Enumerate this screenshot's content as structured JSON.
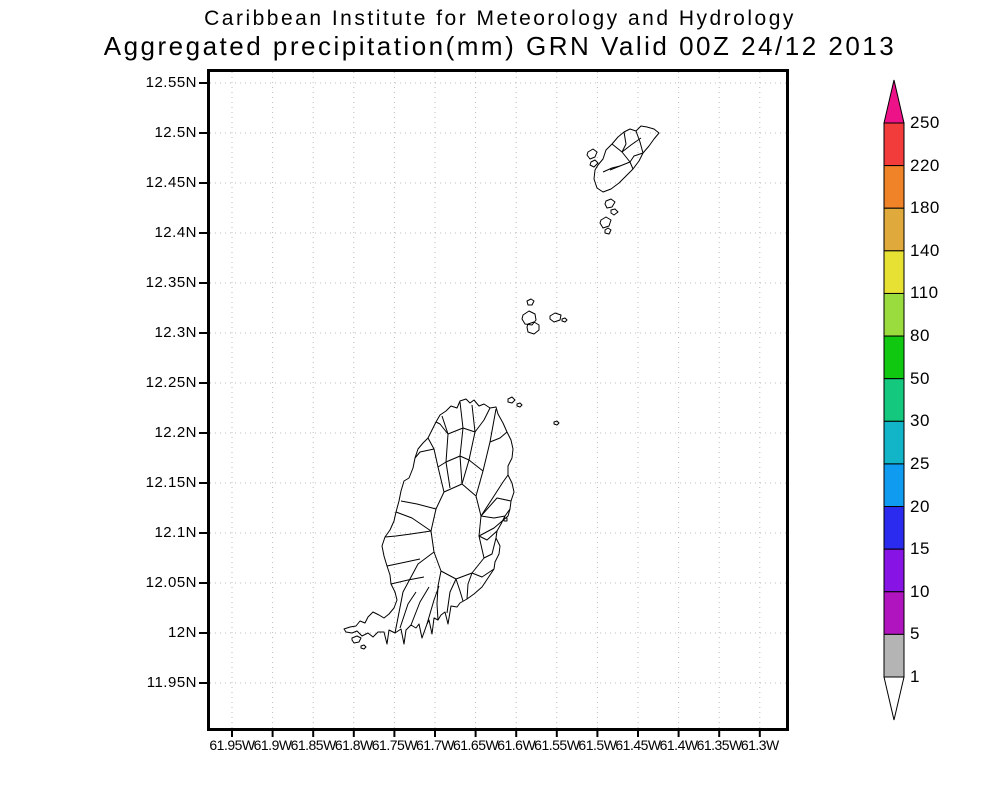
{
  "header": {
    "line1": "Caribbean Institute for Meteorology and Hydrology",
    "line2": "Aggregated precipitation(mm) GRN Valid 00Z 24/12 2013"
  },
  "map": {
    "y_axis": {
      "ticks": [
        "12.55N",
        "12.5N",
        "12.45N",
        "12.4N",
        "12.35N",
        "12.3N",
        "12.25N",
        "12.2N",
        "12.15N",
        "12.1N",
        "12.05N",
        "12N",
        "11.95N"
      ]
    },
    "x_axis": {
      "ticks": [
        "61.95W",
        "61.9W",
        "61.85W",
        "61.8W",
        "61.75W",
        "61.7W",
        "61.65W",
        "61.6W",
        "61.55W",
        "61.5W",
        "61.45W",
        "61.4W",
        "61.35W",
        "61.3W"
      ]
    },
    "gridline_color": "#bcbcbc",
    "coast_color": "#000000"
  },
  "colorbar": {
    "labels": [
      "250",
      "220",
      "180",
      "140",
      "110",
      "80",
      "50",
      "30",
      "25",
      "20",
      "15",
      "10",
      "5",
      "1"
    ],
    "levels_mm": [
      250,
      220,
      180,
      140,
      110,
      80,
      50,
      30,
      25,
      20,
      15,
      10,
      5,
      1
    ],
    "segment_colors_top_to_bottom": [
      "#f23b3b",
      "#f08228",
      "#e0a93c",
      "#e7e134",
      "#9adb3d",
      "#0fc80f",
      "#14c87e",
      "#12b5c8",
      "#0f9bf0",
      "#2b2bf0",
      "#8713e4",
      "#b014be",
      "#b4b4b4"
    ],
    "top_arrow_color": "#ee1289",
    "bottom_arrow_color": "#ffffff"
  }
}
